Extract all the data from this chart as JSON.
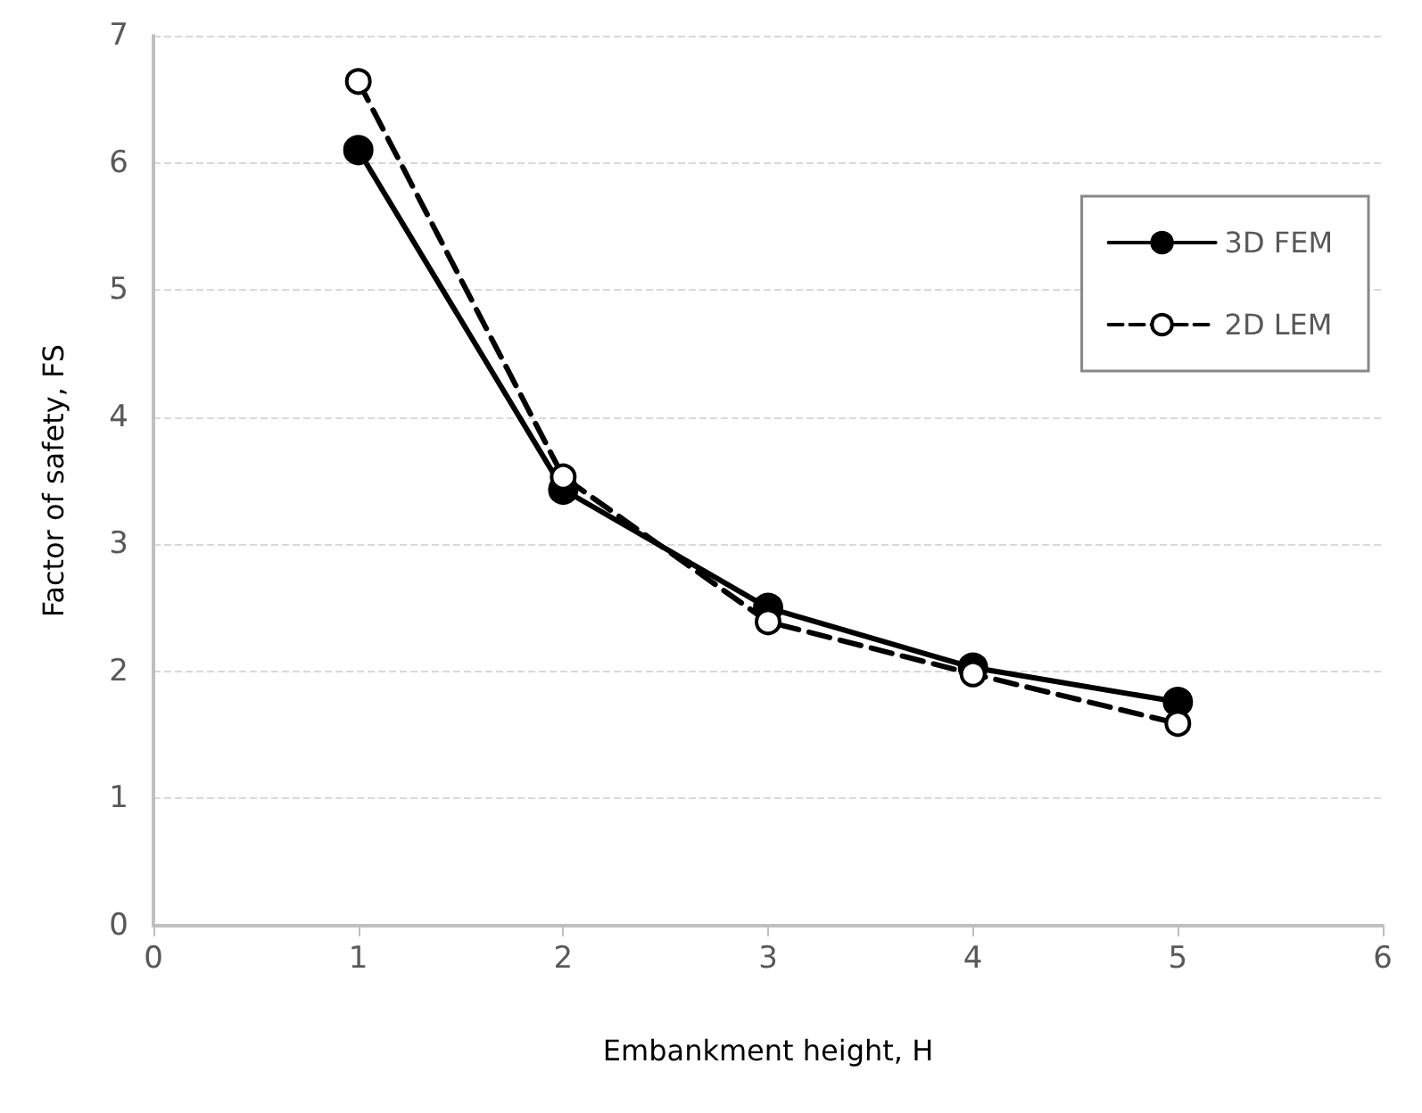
{
  "chart_data": {
    "type": "line",
    "xlabel": "Embankment height, H",
    "ylabel": "Factor of safety, FS",
    "x": [
      1,
      2,
      3,
      4,
      5
    ],
    "series": [
      {
        "name": "3D FEM",
        "color": "#000000",
        "marker": "circle",
        "line_style": "solid",
        "values": [
          6.1,
          3.43,
          2.5,
          2.03,
          1.76
        ]
      },
      {
        "name": "2D LEM",
        "color": "#000000",
        "marker": "circle",
        "line_style": "dashed",
        "values": [
          6.64,
          3.53,
          2.39,
          1.98,
          1.59
        ]
      }
    ],
    "xlim": [
      0,
      6
    ],
    "xticks": [
      0,
      1,
      2,
      3,
      4,
      5,
      6
    ],
    "ylim": [
      0,
      7
    ],
    "yticks": [
      0,
      1,
      2,
      3,
      4,
      5,
      6,
      7
    ],
    "grid": "y",
    "legend": "top right"
  }
}
